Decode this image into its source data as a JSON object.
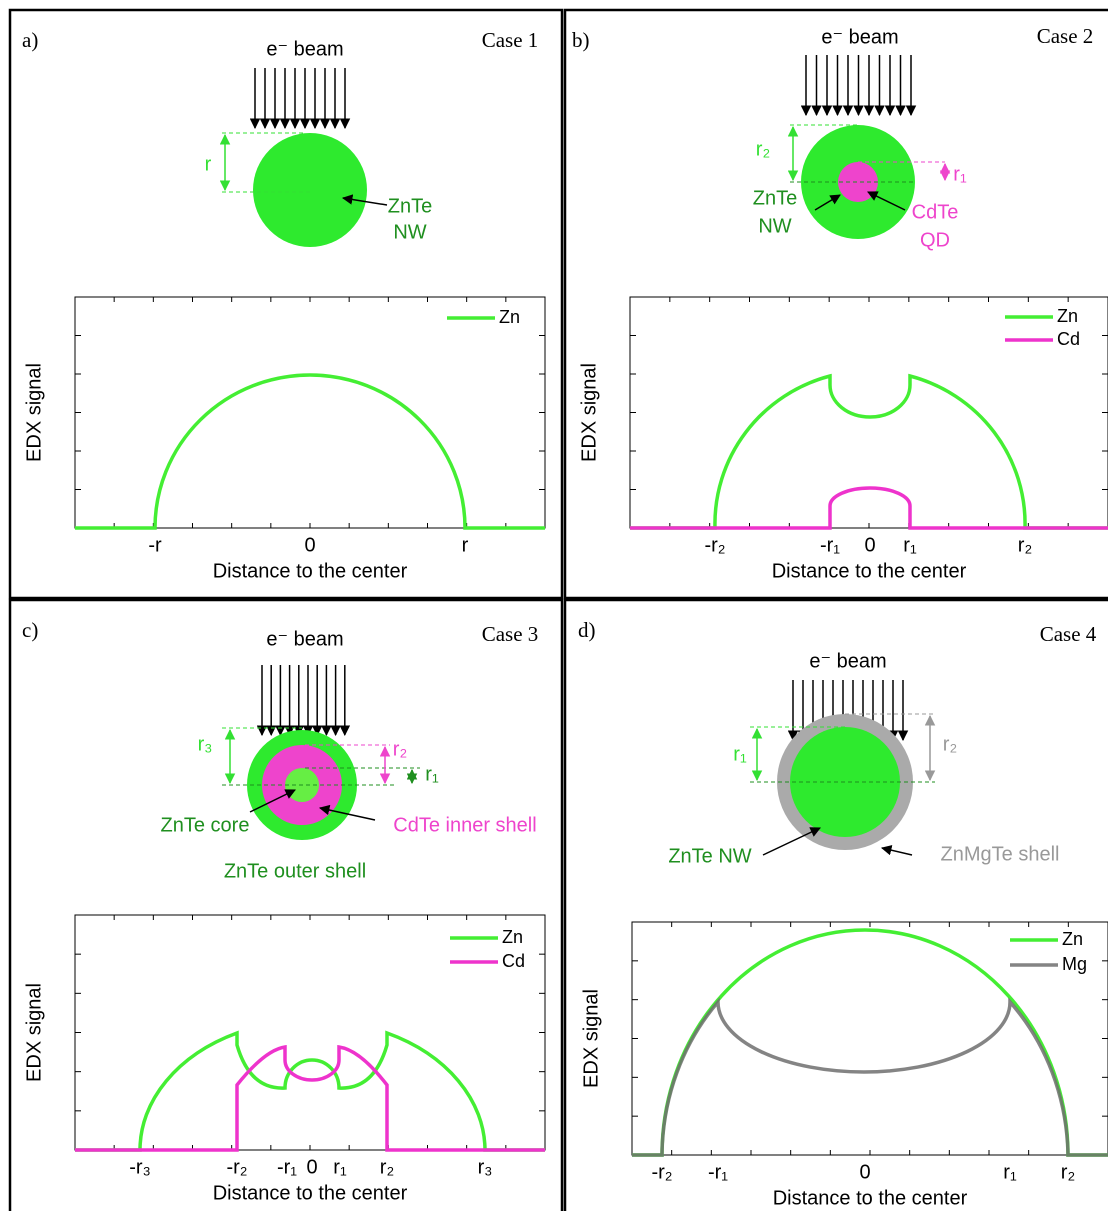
{
  "panels": [
    {
      "label": "a)",
      "case": "Case 1",
      "beam": "e⁻ beam",
      "diagram_labels": [
        "r",
        "ZnTe",
        "NW"
      ],
      "chart": {
        "y_label": "EDX signal",
        "x_label": "Distance to the center",
        "legend": [
          "Zn"
        ],
        "x_ticks": [
          "-r",
          "0",
          "r"
        ]
      }
    },
    {
      "label": "b)",
      "case": "Case 2",
      "beam": "e⁻ beam",
      "diagram_labels": [
        "r₂",
        "r₁",
        "ZnTe",
        "NW",
        "CdTe",
        "QD"
      ],
      "chart": {
        "y_label": "EDX signal",
        "x_label": "Distance to the center",
        "legend": [
          "Zn",
          "Cd"
        ],
        "x_ticks": [
          "-r₂",
          "-r₁",
          "0",
          "r₁",
          "r₂"
        ]
      }
    },
    {
      "label": "c)",
      "case": "Case 3",
      "beam": "e⁻ beam",
      "diagram_labels": [
        "r₃",
        "r₂",
        "r₁",
        "ZnTe core",
        "CdTe inner shell",
        "ZnTe outer shell"
      ],
      "chart": {
        "y_label": "EDX signal",
        "x_label": "Distance to the center",
        "legend": [
          "Zn",
          "Cd"
        ],
        "x_ticks": [
          "-r₃",
          "-r₂",
          "-r₁",
          "0",
          "r₁",
          "r₂",
          "r₃"
        ]
      }
    },
    {
      "label": "d)",
      "case": "Case 4",
      "beam": "e⁻ beam",
      "diagram_labels": [
        "r₁",
        "r₂",
        "ZnTe NW",
        "ZnMgTe shell"
      ],
      "chart": {
        "y_label": "EDX signal",
        "x_label": "Distance to the center",
        "legend": [
          "Zn",
          "Mg"
        ],
        "x_ticks": [
          "-r₂",
          "-r₁",
          "0",
          "r₁",
          "r₂"
        ]
      }
    }
  ]
}
